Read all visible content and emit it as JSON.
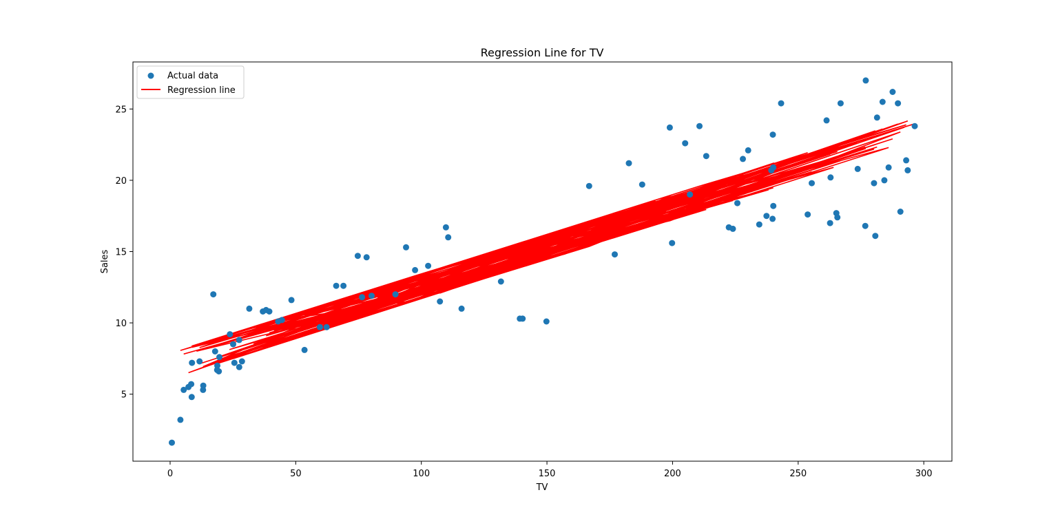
{
  "chart_data": {
    "type": "scatter",
    "title": "Regression Line for TV",
    "xlabel": "TV",
    "ylabel": "Sales",
    "xlim": [
      -14.8,
      311.2
    ],
    "ylim": [
      0.3,
      28.3
    ],
    "xticks": [
      0,
      50,
      100,
      150,
      200,
      250,
      300
    ],
    "yticks": [
      5,
      10,
      15,
      20,
      25
    ],
    "grid": false,
    "legend_position": "top-left",
    "legend": [
      "Actual data",
      "Regression line"
    ],
    "colors": {
      "points": "#1f77b4",
      "line": "#ff0000"
    },
    "regression": {
      "intercept": 7.0,
      "slope": 0.0555,
      "jitter": 0.9
    },
    "series": [
      {
        "name": "Actual data",
        "kind": "scatter",
        "points": [
          [
            0.7,
            1.6
          ],
          [
            4.1,
            3.2
          ],
          [
            5.4,
            5.3
          ],
          [
            7.3,
            5.5
          ],
          [
            8.4,
            5.7
          ],
          [
            8.6,
            4.8
          ],
          [
            8.7,
            7.2
          ],
          [
            11.7,
            7.3
          ],
          [
            13.1,
            5.3
          ],
          [
            13.2,
            5.6
          ],
          [
            17.2,
            12.0
          ],
          [
            17.9,
            8.0
          ],
          [
            18.7,
            6.7
          ],
          [
            18.8,
            7.0
          ],
          [
            19.4,
            6.6
          ],
          [
            19.6,
            7.6
          ],
          [
            23.8,
            9.2
          ],
          [
            25.1,
            8.5
          ],
          [
            25.6,
            7.2
          ],
          [
            27.5,
            8.8
          ],
          [
            28.6,
            7.3
          ],
          [
            27.5,
            6.9
          ],
          [
            31.5,
            11.0
          ],
          [
            36.9,
            10.8
          ],
          [
            38.2,
            10.9
          ],
          [
            39.5,
            10.8
          ],
          [
            43.0,
            10.1
          ],
          [
            44.5,
            10.2
          ],
          [
            48.3,
            11.6
          ],
          [
            53.5,
            8.1
          ],
          [
            59.6,
            9.7
          ],
          [
            62.3,
            9.7
          ],
          [
            66.1,
            12.6
          ],
          [
            69.0,
            12.6
          ],
          [
            74.7,
            14.7
          ],
          [
            76.4,
            11.8
          ],
          [
            78.2,
            14.6
          ],
          [
            80.2,
            11.9
          ],
          [
            89.7,
            12.0
          ],
          [
            93.9,
            15.3
          ],
          [
            97.5,
            13.7
          ],
          [
            102.7,
            14.0
          ],
          [
            107.4,
            11.5
          ],
          [
            109.8,
            16.7
          ],
          [
            110.7,
            16.0
          ],
          [
            116.0,
            11.0
          ],
          [
            131.7,
            12.9
          ],
          [
            139.2,
            10.3
          ],
          [
            140.3,
            10.3
          ],
          [
            149.8,
            10.1
          ],
          [
            166.8,
            19.6
          ],
          [
            177.0,
            14.8
          ],
          [
            182.6,
            21.2
          ],
          [
            187.9,
            19.7
          ],
          [
            198.9,
            23.7
          ],
          [
            199.8,
            15.6
          ],
          [
            205.0,
            22.6
          ],
          [
            206.9,
            19.0
          ],
          [
            210.7,
            23.8
          ],
          [
            213.4,
            21.7
          ],
          [
            222.4,
            16.7
          ],
          [
            224.0,
            16.6
          ],
          [
            225.8,
            18.4
          ],
          [
            228.0,
            21.5
          ],
          [
            230.1,
            22.1
          ],
          [
            234.5,
            16.9
          ],
          [
            237.4,
            17.5
          ],
          [
            239.3,
            20.7
          ],
          [
            239.8,
            17.3
          ],
          [
            240.1,
            18.2
          ],
          [
            240.1,
            20.9
          ],
          [
            239.9,
            23.2
          ],
          [
            243.2,
            25.4
          ],
          [
            253.8,
            17.6
          ],
          [
            255.4,
            19.8
          ],
          [
            261.3,
            24.2
          ],
          [
            262.9,
            20.2
          ],
          [
            262.7,
            17.0
          ],
          [
            265.2,
            17.7
          ],
          [
            265.6,
            17.4
          ],
          [
            266.9,
            25.4
          ],
          [
            273.7,
            20.8
          ],
          [
            276.7,
            16.8
          ],
          [
            276.9,
            27.0
          ],
          [
            280.2,
            19.8
          ],
          [
            280.7,
            16.1
          ],
          [
            281.4,
            24.4
          ],
          [
            283.6,
            25.5
          ],
          [
            284.3,
            20.0
          ],
          [
            286.0,
            20.9
          ],
          [
            287.6,
            26.2
          ],
          [
            289.7,
            25.4
          ],
          [
            290.7,
            17.8
          ],
          [
            293.0,
            21.4
          ],
          [
            293.6,
            20.7
          ],
          [
            296.4,
            23.8
          ]
        ]
      },
      {
        "name": "Regression line",
        "kind": "line",
        "x": [
          5.4,
          240.1,
          17.2,
          75.3,
          280.2,
          11.7,
          48.3,
          199.8,
          140.3,
          63.2,
          287.6,
          23.8,
          223.5,
          110.7,
          33.2,
          262.9,
          8.6,
          96.5,
          183.4,
          43.0,
          253.8,
          130.2,
          18.8,
          215.1,
          66.1,
          276.9,
          149.8,
          39.5,
          230.1,
          90.4,
          13.2,
          292.3,
          120.7,
          57.5,
          206.9,
          27.5,
          166.8,
          241.0,
          78.2,
          10.5,
          265.6,
          135.4,
          44.5,
          197.5,
          102.7,
          280.7,
          19.6,
          226.0,
          69.0,
          159.8,
          29.9,
          251.1,
          107.4,
          172.5,
          7.3,
          289.7,
          86.3,
          217.7,
          53.5,
          139.2,
          264.1,
          25.1,
          188.4,
          116.0,
          238.2,
          38.2,
          283.6,
          74.7,
          205.0,
          16.9,
          151.5,
          95.7,
          273.7,
          59.6,
          228.3,
          123.1,
          8.7,
          177.0,
          266.9,
          93.9,
          44.7,
          213.4,
          141.3,
          28.6,
          296.4,
          109.8,
          193.2,
          68.4,
          247.2,
          131.7,
          18.7,
          286.0,
          163.3,
          80.2,
          222.4,
          50.0,
          262.7,
          119.1,
          36.9,
          181.0,
          239.8,
          97.5,
          17.9,
          257.3,
          143.5,
          62.3,
          210.7,
          293.0,
          4.1,
          187.9,
          89.7,
          235.1,
          127.4,
          27.5,
          276.7,
          157.0,
          41.3,
          224.0,
          76.4,
          13.1,
          290.7,
          199.1,
          101.2,
          240.4,
          65.8,
          171.4,
          23.6,
          281.4,
          111.9,
          209.6,
          48.3,
          255.4,
          137.8,
          19.4,
          234.5,
          82.6,
          293.6,
          146.2,
          11.8
        ]
      }
    ]
  }
}
